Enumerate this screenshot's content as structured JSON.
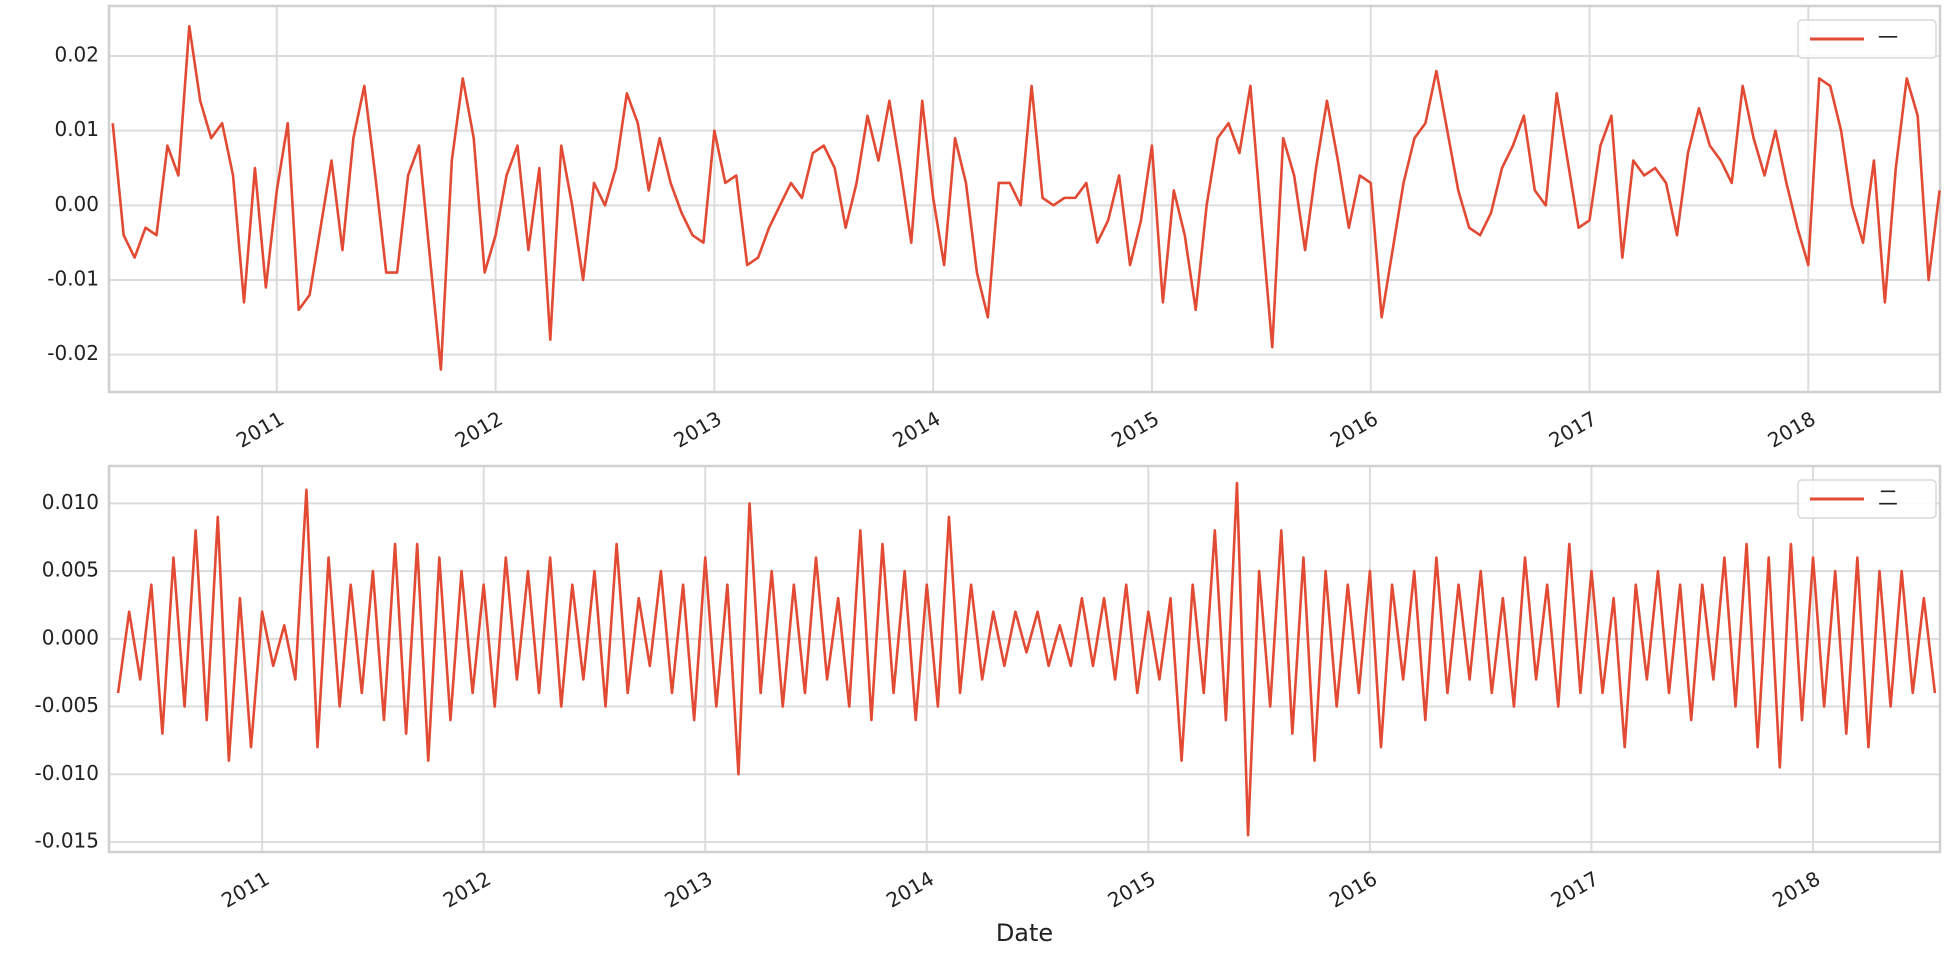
{
  "chart_data": [
    {
      "type": "line",
      "x": [
        2010.25,
        2010.3,
        2010.35,
        2010.4,
        2010.45,
        2010.5,
        2010.55,
        2010.6,
        2010.65,
        2010.7,
        2010.75,
        2010.8,
        2010.85,
        2010.9,
        2010.95,
        2011,
        2011.05,
        2011.1,
        2011.15,
        2011.2,
        2011.25,
        2011.3,
        2011.35,
        2011.4,
        2011.45,
        2011.5,
        2011.55,
        2011.6,
        2011.65,
        2011.7,
        2011.75,
        2011.8,
        2011.85,
        2011.9,
        2011.95,
        2012,
        2012.05,
        2012.1,
        2012.15,
        2012.2,
        2012.25,
        2012.3,
        2012.35,
        2012.4,
        2012.45,
        2012.5,
        2012.55,
        2012.6,
        2012.65,
        2012.7,
        2012.75,
        2012.8,
        2012.85,
        2012.9,
        2012.95,
        2013,
        2013.05,
        2013.1,
        2013.15,
        2013.2,
        2013.25,
        2013.3,
        2013.35,
        2013.4,
        2013.45,
        2013.5,
        2013.55,
        2013.6,
        2013.65,
        2013.7,
        2013.75,
        2013.8,
        2013.85,
        2013.9,
        2013.95,
        2014,
        2014.05,
        2014.1,
        2014.15,
        2014.2,
        2014.25,
        2014.3,
        2014.35,
        2014.4,
        2014.45,
        2014.5,
        2014.55,
        2014.6,
        2014.65,
        2014.7,
        2014.75,
        2014.8,
        2014.85,
        2014.9,
        2014.95,
        2015,
        2015.05,
        2015.1,
        2015.15,
        2015.2,
        2015.25,
        2015.3,
        2015.35,
        2015.4,
        2015.45,
        2015.5,
        2015.55,
        2015.6,
        2015.65,
        2015.7,
        2015.75,
        2015.8,
        2015.85,
        2015.9,
        2015.95,
        2016,
        2016.05,
        2016.1,
        2016.15,
        2016.2,
        2016.25,
        2016.3,
        2016.35,
        2016.4,
        2016.45,
        2016.5,
        2016.55,
        2016.6,
        2016.65,
        2016.7,
        2016.75,
        2016.8,
        2016.85,
        2016.9,
        2016.95,
        2017,
        2017.05,
        2017.1,
        2017.15,
        2017.2,
        2017.25,
        2017.3,
        2017.35,
        2017.4,
        2017.45,
        2017.5,
        2017.55,
        2017.6,
        2017.65,
        2017.7,
        2017.75,
        2017.8,
        2017.85,
        2017.9,
        2017.95,
        2018,
        2018.05,
        2018.1,
        2018.15,
        2018.2,
        2018.25,
        2018.3,
        2018.35,
        2018.4,
        2018.45,
        2018.5,
        2018.55,
        2018.6
      ],
      "series": [
        {
          "name": "一",
          "color": "#e24a33",
          "values": [
            0.011,
            -0.004,
            -0.007,
            -0.003,
            -0.004,
            0.008,
            0.004,
            0.024,
            0.014,
            0.009,
            0.011,
            0.004,
            -0.013,
            0.005,
            -0.011,
            0.002,
            0.011,
            -0.014,
            -0.012,
            -0.003,
            0.006,
            -0.006,
            0.009,
            0.016,
            0.004,
            -0.009,
            -0.009,
            0.004,
            0.008,
            -0.007,
            -0.022,
            0.006,
            0.017,
            0.009,
            -0.009,
            -0.004,
            0.004,
            0.008,
            -0.006,
            0.005,
            -0.018,
            0.008,
            0.0,
            -0.01,
            0.003,
            0.0,
            0.005,
            0.015,
            0.011,
            0.002,
            0.009,
            0.003,
            -0.001,
            -0.004,
            -0.005,
            0.01,
            0.003,
            0.004,
            -0.008,
            -0.007,
            -0.003,
            0.0,
            0.003,
            0.001,
            0.007,
            0.008,
            0.005,
            -0.003,
            0.003,
            0.012,
            0.006,
            0.014,
            0.005,
            -0.005,
            0.014,
            0.001,
            -0.008,
            0.009,
            0.003,
            -0.009,
            -0.015,
            0.003,
            0.003,
            0.0,
            0.016,
            0.001,
            0.0,
            0.001,
            0.001,
            0.003,
            -0.005,
            -0.002,
            0.004,
            -0.008,
            -0.002,
            0.008,
            -0.013,
            0.002,
            -0.004,
            -0.014,
            0.0,
            0.009,
            0.011,
            0.007,
            0.016,
            -0.002,
            -0.019,
            0.009,
            0.004,
            -0.006,
            0.005,
            0.014,
            0.006,
            -0.003,
            0.004,
            0.003,
            -0.015,
            -0.006,
            0.003,
            0.009,
            0.011,
            0.018,
            0.01,
            0.002,
            -0.003,
            -0.004,
            -0.001,
            0.005,
            0.008,
            0.012,
            0.002,
            0.0,
            0.015,
            0.006,
            -0.003,
            -0.002,
            0.008,
            0.012,
            -0.007,
            0.006,
            0.004,
            0.005,
            0.003,
            -0.004,
            0.007,
            0.013,
            0.008,
            0.006,
            0.003,
            0.016,
            0.009,
            0.004,
            0.01,
            0.003,
            -0.003,
            -0.008,
            0.017,
            0.016,
            0.01,
            0.0,
            -0.005,
            0.006,
            -0.013,
            0.005,
            0.017,
            0.012,
            -0.01,
            0.002
          ]
        }
      ],
      "xlim": [
        2010.233,
        2018.602
      ],
      "xticks": [
        2011,
        2012,
        2013,
        2014,
        2015,
        2016,
        2017,
        2018
      ],
      "ylim": [
        -0.025,
        0.0267
      ],
      "yticks": [
        -0.02,
        -0.01,
        {
          "value": 0,
          "label": "0.00"
        },
        0.01,
        0.02
      ],
      "grid": true,
      "legend": "upper right"
    },
    {
      "type": "line",
      "x": [
        2010.35,
        2010.4,
        2010.45,
        2010.5,
        2010.55,
        2010.6,
        2010.65,
        2010.7,
        2010.75,
        2010.8,
        2010.85,
        2010.9,
        2010.95,
        2011,
        2011.05,
        2011.1,
        2011.15,
        2011.2,
        2011.25,
        2011.3,
        2011.35,
        2011.4,
        2011.45,
        2011.5,
        2011.55,
        2011.6,
        2011.65,
        2011.7,
        2011.75,
        2011.8,
        2011.85,
        2011.9,
        2011.95,
        2012,
        2012.05,
        2012.1,
        2012.15,
        2012.2,
        2012.25,
        2012.3,
        2012.35,
        2012.4,
        2012.45,
        2012.5,
        2012.55,
        2012.6,
        2012.65,
        2012.7,
        2012.75,
        2012.8,
        2012.85,
        2012.9,
        2012.95,
        2013,
        2013.05,
        2013.1,
        2013.15,
        2013.2,
        2013.25,
        2013.3,
        2013.35,
        2013.4,
        2013.45,
        2013.5,
        2013.55,
        2013.6,
        2013.65,
        2013.7,
        2013.75,
        2013.8,
        2013.85,
        2013.9,
        2013.95,
        2014,
        2014.05,
        2014.1,
        2014.15,
        2014.2,
        2014.25,
        2014.3,
        2014.35,
        2014.4,
        2014.45,
        2014.5,
        2014.55,
        2014.6,
        2014.65,
        2014.7,
        2014.75,
        2014.8,
        2014.85,
        2014.9,
        2014.95,
        2015,
        2015.05,
        2015.1,
        2015.15,
        2015.2,
        2015.25,
        2015.3,
        2015.35,
        2015.4,
        2015.45,
        2015.5,
        2015.55,
        2015.6,
        2015.65,
        2015.7,
        2015.75,
        2015.8,
        2015.85,
        2015.9,
        2015.95,
        2016,
        2016.05,
        2016.1,
        2016.15,
        2016.2,
        2016.25,
        2016.3,
        2016.35,
        2016.4,
        2016.45,
        2016.5,
        2016.55,
        2016.6,
        2016.65,
        2016.7,
        2016.75,
        2016.8,
        2016.85,
        2016.9,
        2016.95,
        2017,
        2017.05,
        2017.1,
        2017.15,
        2017.2,
        2017.25,
        2017.3,
        2017.35,
        2017.4,
        2017.45,
        2017.5,
        2017.55,
        2017.6,
        2017.65,
        2017.7,
        2017.75,
        2017.8,
        2017.85,
        2017.9,
        2017.95,
        2018,
        2018.05,
        2018.1,
        2018.15,
        2018.2,
        2018.25,
        2018.3,
        2018.35,
        2018.4,
        2018.45,
        2018.5,
        2018.55
      ],
      "series": [
        {
          "name": "二",
          "color": "#e24a33",
          "values": [
            -0.004,
            0.002,
            -0.003,
            0.004,
            -0.007,
            0.006,
            -0.005,
            0.008,
            -0.006,
            0.009,
            -0.009,
            0.003,
            -0.008,
            0.002,
            -0.002,
            0.001,
            -0.003,
            0.011,
            -0.008,
            0.006,
            -0.005,
            0.004,
            -0.004,
            0.005,
            -0.006,
            0.007,
            -0.007,
            0.007,
            -0.009,
            0.006,
            -0.006,
            0.005,
            -0.004,
            0.004,
            -0.005,
            0.006,
            -0.003,
            0.005,
            -0.004,
            0.006,
            -0.005,
            0.004,
            -0.003,
            0.005,
            -0.005,
            0.007,
            -0.004,
            0.003,
            -0.002,
            0.005,
            -0.004,
            0.004,
            -0.006,
            0.006,
            -0.005,
            0.004,
            -0.01,
            0.01,
            -0.004,
            0.005,
            -0.005,
            0.004,
            -0.004,
            0.006,
            -0.003,
            0.003,
            -0.005,
            0.008,
            -0.006,
            0.007,
            -0.004,
            0.005,
            -0.006,
            0.004,
            -0.005,
            0.009,
            -0.004,
            0.004,
            -0.003,
            0.002,
            -0.002,
            0.002,
            -0.001,
            0.002,
            -0.002,
            0.001,
            -0.002,
            0.003,
            -0.002,
            0.003,
            -0.003,
            0.004,
            -0.004,
            0.002,
            -0.003,
            0.003,
            -0.009,
            0.004,
            -0.004,
            0.008,
            -0.006,
            0.0115,
            -0.0145,
            0.005,
            -0.005,
            0.008,
            -0.007,
            0.006,
            -0.009,
            0.005,
            -0.005,
            0.004,
            -0.004,
            0.005,
            -0.008,
            0.004,
            -0.003,
            0.005,
            -0.006,
            0.006,
            -0.004,
            0.004,
            -0.003,
            0.005,
            -0.004,
            0.003,
            -0.005,
            0.006,
            -0.003,
            0.004,
            -0.005,
            0.007,
            -0.004,
            0.005,
            -0.004,
            0.003,
            -0.008,
            0.004,
            -0.003,
            0.005,
            -0.004,
            0.004,
            -0.006,
            0.004,
            -0.003,
            0.006,
            -0.005,
            0.007,
            -0.008,
            0.006,
            -0.0095,
            0.007,
            -0.006,
            0.006,
            -0.005,
            0.005,
            -0.007,
            0.006,
            -0.008,
            0.005,
            -0.005,
            0.005,
            -0.004,
            0.003,
            -0.004
          ]
        }
      ],
      "xlim": [
        2010.309,
        2018.573
      ],
      "xticks": [
        2011,
        2012,
        2013,
        2014,
        2015,
        2016,
        2017,
        2018
      ],
      "xlabel": "Date",
      "ylim": [
        -0.01574,
        0.01276
      ],
      "yticks": [
        {
          "value": -0.015,
          "label": "-0.015"
        },
        {
          "value": -0.01,
          "label": "-0.010"
        },
        {
          "value": -0.005,
          "label": "-0.005"
        },
        {
          "value": 0,
          "label": "0.000"
        },
        {
          "value": 0.005,
          "label": "0.005"
        },
        {
          "value": 0.01,
          "label": "0.010"
        }
      ],
      "grid": true,
      "legend": "upper right"
    }
  ]
}
